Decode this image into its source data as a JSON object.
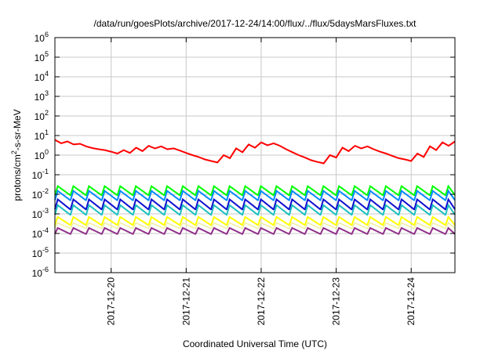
{
  "chart_data": {
    "type": "line",
    "title": "/data/run/goesPlots/archive/2017-12-24/14:00/flux/../flux/5daysMarsFluxes.txt",
    "xlabel": "Coordinated Universal Time (UTC)",
    "ylabel_parts": {
      "base": "protons/cm",
      "sup": "2",
      "rest": "-s-sr-MeV"
    },
    "y_scale": "log",
    "ylim": [
      1e-06,
      1000000.0
    ],
    "y_ticks": [
      {
        "base": "10",
        "exp": "-6",
        "value": 1e-06
      },
      {
        "base": "10",
        "exp": "-5",
        "value": 1e-05
      },
      {
        "base": "10",
        "exp": "-4",
        "value": 0.0001
      },
      {
        "base": "10",
        "exp": "-3",
        "value": 0.001
      },
      {
        "base": "10",
        "exp": "-2",
        "value": 0.01
      },
      {
        "base": "10",
        "exp": "-1",
        "value": 0.1
      },
      {
        "base": "10",
        "exp": "0",
        "value": 1
      },
      {
        "base": "10",
        "exp": "1",
        "value": 10
      },
      {
        "base": "10",
        "exp": "2",
        "value": 100
      },
      {
        "base": "10",
        "exp": "3",
        "value": 1000
      },
      {
        "base": "10",
        "exp": "4",
        "value": 10000
      },
      {
        "base": "10",
        "exp": "5",
        "value": 100000
      },
      {
        "base": "10",
        "exp": "6",
        "value": 1000000
      }
    ],
    "x_range_days": [
      "2017-12-19T06:00",
      "2017-12-24T14:00"
    ],
    "x_ticks": [
      {
        "label": "2017-12-20",
        "date": "2017-12-20"
      },
      {
        "label": "2017-12-21",
        "date": "2017-12-21"
      },
      {
        "label": "2017-12-22",
        "date": "2017-12-22"
      },
      {
        "label": "2017-12-23",
        "date": "2017-12-23"
      },
      {
        "label": "2017-12-24",
        "date": "2017-12-24"
      }
    ],
    "grid": true,
    "series": [
      {
        "color": "#ff0000",
        "width": 2,
        "pattern": "smooth",
        "points": [
          [
            "2017-12-19T06:00",
            6.0
          ],
          [
            "2017-12-19T08:00",
            4.0
          ],
          [
            "2017-12-19T10:00",
            5.0
          ],
          [
            "2017-12-19T12:00",
            3.5
          ],
          [
            "2017-12-19T14:00",
            3.8
          ],
          [
            "2017-12-19T16:00",
            2.8
          ],
          [
            "2017-12-19T18:00",
            2.3
          ],
          [
            "2017-12-19T20:00",
            2.0
          ],
          [
            "2017-12-19T22:00",
            1.8
          ],
          [
            "2017-12-20T00:00",
            1.5
          ],
          [
            "2017-12-20T02:00",
            1.2
          ],
          [
            "2017-12-20T04:00",
            1.8
          ],
          [
            "2017-12-20T06:00",
            1.3
          ],
          [
            "2017-12-20T08:00",
            2.4
          ],
          [
            "2017-12-20T10:00",
            1.6
          ],
          [
            "2017-12-20T12:00",
            3.0
          ],
          [
            "2017-12-20T14:00",
            2.2
          ],
          [
            "2017-12-20T16:00",
            2.8
          ],
          [
            "2017-12-20T18:00",
            2.0
          ],
          [
            "2017-12-20T20:00",
            2.2
          ],
          [
            "2017-12-20T22:00",
            1.7
          ],
          [
            "2017-12-21T00:00",
            1.3
          ],
          [
            "2017-12-21T02:00",
            1.0
          ],
          [
            "2017-12-21T04:00",
            0.8
          ],
          [
            "2017-12-21T06:00",
            0.6
          ],
          [
            "2017-12-21T08:00",
            0.5
          ],
          [
            "2017-12-21T10:00",
            0.42
          ],
          [
            "2017-12-21T12:00",
            1.0
          ],
          [
            "2017-12-21T14:00",
            0.7
          ],
          [
            "2017-12-21T16:00",
            2.2
          ],
          [
            "2017-12-21T18:00",
            1.4
          ],
          [
            "2017-12-21T20:00",
            3.5
          ],
          [
            "2017-12-21T22:00",
            2.4
          ],
          [
            "2017-12-22T00:00",
            4.5
          ],
          [
            "2017-12-22T02:00",
            3.2
          ],
          [
            "2017-12-22T04:00",
            4.0
          ],
          [
            "2017-12-22T06:00",
            3.0
          ],
          [
            "2017-12-22T08:00",
            2.0
          ],
          [
            "2017-12-22T10:00",
            1.4
          ],
          [
            "2017-12-22T12:00",
            1.0
          ],
          [
            "2017-12-22T14:00",
            0.75
          ],
          [
            "2017-12-22T16:00",
            0.55
          ],
          [
            "2017-12-22T18:00",
            0.45
          ],
          [
            "2017-12-22T20:00",
            0.38
          ],
          [
            "2017-12-22T22:00",
            1.0
          ],
          [
            "2017-12-23T00:00",
            0.75
          ],
          [
            "2017-12-23T02:00",
            2.4
          ],
          [
            "2017-12-23T04:00",
            1.6
          ],
          [
            "2017-12-23T06:00",
            3.0
          ],
          [
            "2017-12-23T08:00",
            2.2
          ],
          [
            "2017-12-23T10:00",
            2.8
          ],
          [
            "2017-12-23T12:00",
            2.0
          ],
          [
            "2017-12-23T14:00",
            1.5
          ],
          [
            "2017-12-23T16:00",
            1.2
          ],
          [
            "2017-12-23T18:00",
            0.9
          ],
          [
            "2017-12-23T20:00",
            0.7
          ],
          [
            "2017-12-23T22:00",
            0.6
          ],
          [
            "2017-12-24T00:00",
            0.5
          ],
          [
            "2017-12-24T02:00",
            1.2
          ],
          [
            "2017-12-24T04:00",
            0.8
          ],
          [
            "2017-12-24T06:00",
            2.8
          ],
          [
            "2017-12-24T08:00",
            1.8
          ],
          [
            "2017-12-24T10:00",
            4.5
          ],
          [
            "2017-12-24T12:00",
            3.0
          ],
          [
            "2017-12-24T14:00",
            5.0
          ]
        ]
      },
      {
        "color": "#00ff00",
        "width": 2,
        "pattern": "sawtooth",
        "low": 0.009,
        "high": 0.026,
        "period_hours": 5
      },
      {
        "color": "#0088ff",
        "width": 2,
        "pattern": "sawtooth",
        "low": 0.005,
        "high": 0.015,
        "period_hours": 5
      },
      {
        "color": "#1010d0",
        "width": 2,
        "pattern": "sawtooth",
        "low": 0.0017,
        "high": 0.0055,
        "period_hours": 5
      },
      {
        "color": "#20c0c0",
        "width": 2,
        "pattern": "sawtooth",
        "low": 0.0009,
        "high": 0.0028,
        "period_hours": 5
      },
      {
        "color": "#ffff00",
        "width": 2,
        "pattern": "sawtooth",
        "low": 0.00027,
        "high": 0.0007,
        "period_hours": 5
      },
      {
        "color": "#f0f0a0",
        "width": 1.5,
        "pattern": "sawtooth",
        "low": 0.00018,
        "high": 0.00035,
        "period_hours": 5
      },
      {
        "color": "#90308a",
        "width": 2,
        "pattern": "sawtooth",
        "low": 9.5e-05,
        "high": 0.00019,
        "period_hours": 5
      }
    ]
  }
}
